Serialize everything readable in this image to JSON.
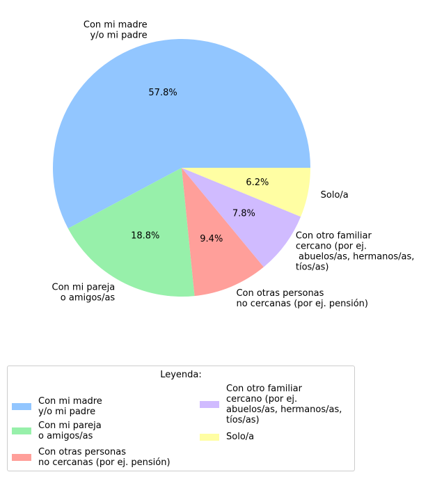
{
  "chart_data": {
    "type": "pie",
    "labels": [
      "Con mi madre\ny/o mi padre",
      "Con mi pareja\no amigos/as",
      "Con otras personas\nno cercanas (por ej. pensión)",
      "Con otro familiar\ncercano (por ej.\n abuelos/as, hermanos/as,\ntíos/as)",
      "Solo/a"
    ],
    "values": [
      57.8,
      18.8,
      9.4,
      7.8,
      6.2
    ],
    "value_labels": [
      "57.8%",
      "18.8%",
      "9.4%",
      "7.8%",
      "6.2%"
    ],
    "colors": [
      "#92c6ff",
      "#97f0aa",
      "#ff9f9a",
      "#d0bbff",
      "#fffea3"
    ],
    "legend": {
      "title": "Leyenda:",
      "placement": "bottom",
      "entries": [
        "Con mi madre\ny/o mi padre",
        "Con mi pareja\no amigos/as",
        "Con otras personas\nno cercanas (por ej. pensión)",
        "Con otro familiar\ncercano (por ej.\n abuelos/as, hermanos/as,\ntíos/as)",
        "Solo/a"
      ]
    }
  }
}
